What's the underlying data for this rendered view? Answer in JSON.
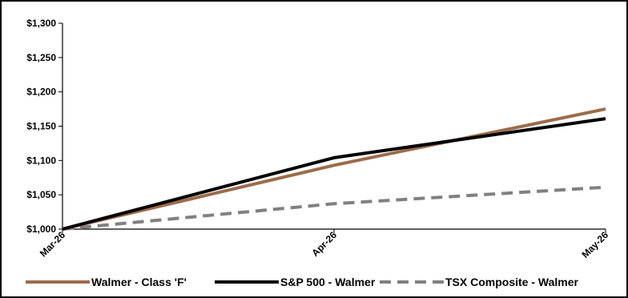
{
  "chart_data": {
    "type": "line",
    "title": "",
    "xlabel": "",
    "ylabel": "",
    "categories": [
      "Mar-26",
      "Apr-26",
      "May-26"
    ],
    "ylim": [
      1000,
      1300
    ],
    "yticks": [
      "$1,000",
      "$1,050",
      "$1,100",
      "$1,150",
      "$1,200",
      "$1,250",
      "$1,300"
    ],
    "ytick_values": [
      1000,
      1050,
      1100,
      1150,
      1200,
      1250,
      1300
    ],
    "grid": false,
    "legend_position": "bottom",
    "series": [
      {
        "name": "Walmer - Class 'F'",
        "values": [
          1000,
          1093,
          1175
        ],
        "color": "#9c6b4a",
        "style": "solid"
      },
      {
        "name": "S&P 500 - Walmer",
        "values": [
          1000,
          1104,
          1161
        ],
        "color": "#000000",
        "style": "solid"
      },
      {
        "name": "TSX Composite - Walmer",
        "values": [
          1000,
          1037,
          1061
        ],
        "color": "#808080",
        "style": "dashed"
      }
    ]
  }
}
